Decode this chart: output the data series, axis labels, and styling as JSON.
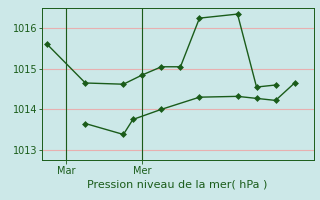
{
  "background_color": "#cce8e8",
  "plot_bg_color": "#cce8e8",
  "grid_color": "#e8b0b0",
  "line_color": "#1a5c1a",
  "marker_color": "#1a5c1a",
  "xlabel": "Pression niveau de la mer( hPa )",
  "ylim": [
    1012.75,
    1016.5
  ],
  "yticks": [
    1013,
    1014,
    1015,
    1016
  ],
  "xtick_labels": [
    "Mar",
    "Mer"
  ],
  "xtick_positions": [
    1,
    5
  ],
  "vline_positions": [
    1,
    5
  ],
  "series1_x": [
    0,
    2,
    4,
    5,
    6,
    7,
    8,
    10,
    11,
    12
  ],
  "series1_y": [
    1015.6,
    1014.65,
    1014.62,
    1014.85,
    1015.05,
    1015.05,
    1016.25,
    1016.35,
    1014.55,
    1014.6
  ],
  "series2_x": [
    2,
    4,
    4.5,
    6,
    8,
    10,
    11,
    12,
    13
  ],
  "series2_y": [
    1013.65,
    1013.38,
    1013.75,
    1014.0,
    1014.3,
    1014.32,
    1014.27,
    1014.22,
    1014.65
  ],
  "line_width": 1.0,
  "marker_size": 3.0,
  "tick_fontsize": 7,
  "xlabel_fontsize": 8,
  "xlim": [
    -0.3,
    14.0
  ]
}
